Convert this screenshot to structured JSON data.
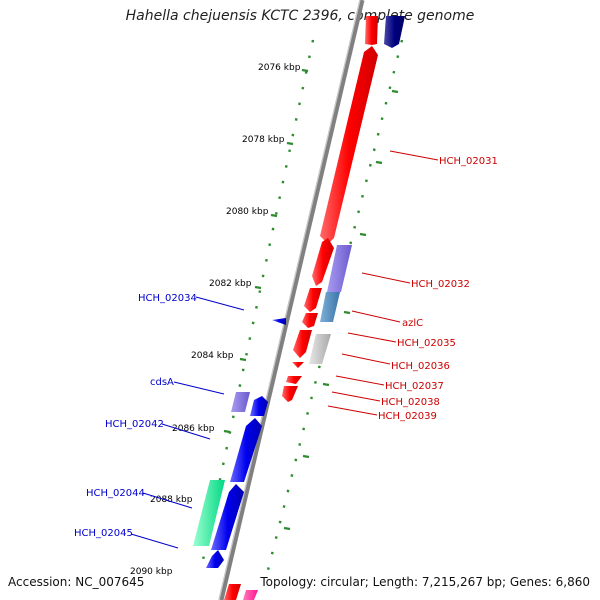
{
  "title": "Hahella chejuensis KCTC 2396, complete genome",
  "accession": "Accession: NC_007645",
  "topology": "Topology: circular; Length: 7,215,267 bp; Genes: 6,860",
  "ticks": [
    {
      "label": "2076 kbp",
      "kbp": 2076
    },
    {
      "label": "2078 kbp",
      "kbp": 2078
    },
    {
      "label": "2080 kbp",
      "kbp": 2080
    },
    {
      "label": "2082 kbp",
      "kbp": 2082
    },
    {
      "label": "2084 kbp",
      "kbp": 2084
    },
    {
      "label": "2086 kbp",
      "kbp": 2086
    },
    {
      "label": "2088 kbp",
      "kbp": 2088
    },
    {
      "label": "2090 kbp",
      "kbp": 2090
    }
  ],
  "genes": [
    {
      "name": "HCH_02031",
      "strand": "forward",
      "color": "#cc0000"
    },
    {
      "name": "HCH_02032",
      "strand": "forward",
      "color": "#cc0000"
    },
    {
      "name": "azlC",
      "strand": "forward",
      "color": "#cc0000"
    },
    {
      "name": "HCH_02035",
      "strand": "forward",
      "color": "#cc0000"
    },
    {
      "name": "HCH_02036",
      "strand": "forward",
      "color": "#cc0000"
    },
    {
      "name": "HCH_02037",
      "strand": "forward",
      "color": "#cc0000"
    },
    {
      "name": "HCH_02038",
      "strand": "forward",
      "color": "#cc0000"
    },
    {
      "name": "HCH_02039",
      "strand": "forward",
      "color": "#cc0000"
    },
    {
      "name": "HCH_02034",
      "strand": "reverse",
      "color": "#0000cc"
    },
    {
      "name": "cdsA",
      "strand": "reverse",
      "color": "#0000cc"
    },
    {
      "name": "HCH_02042",
      "strand": "reverse",
      "color": "#0000cc"
    },
    {
      "name": "HCH_02044",
      "strand": "reverse",
      "color": "#0000cc"
    },
    {
      "name": "HCH_02045",
      "strand": "reverse",
      "color": "#0000cc"
    }
  ],
  "colors": {
    "forward_cds": "#ff0000",
    "reverse_cds": "#0000ee",
    "forward_label": "#cc0000",
    "reverse_label": "#0000cc",
    "tick": "#2e8b2e",
    "backbone": "#888888"
  }
}
